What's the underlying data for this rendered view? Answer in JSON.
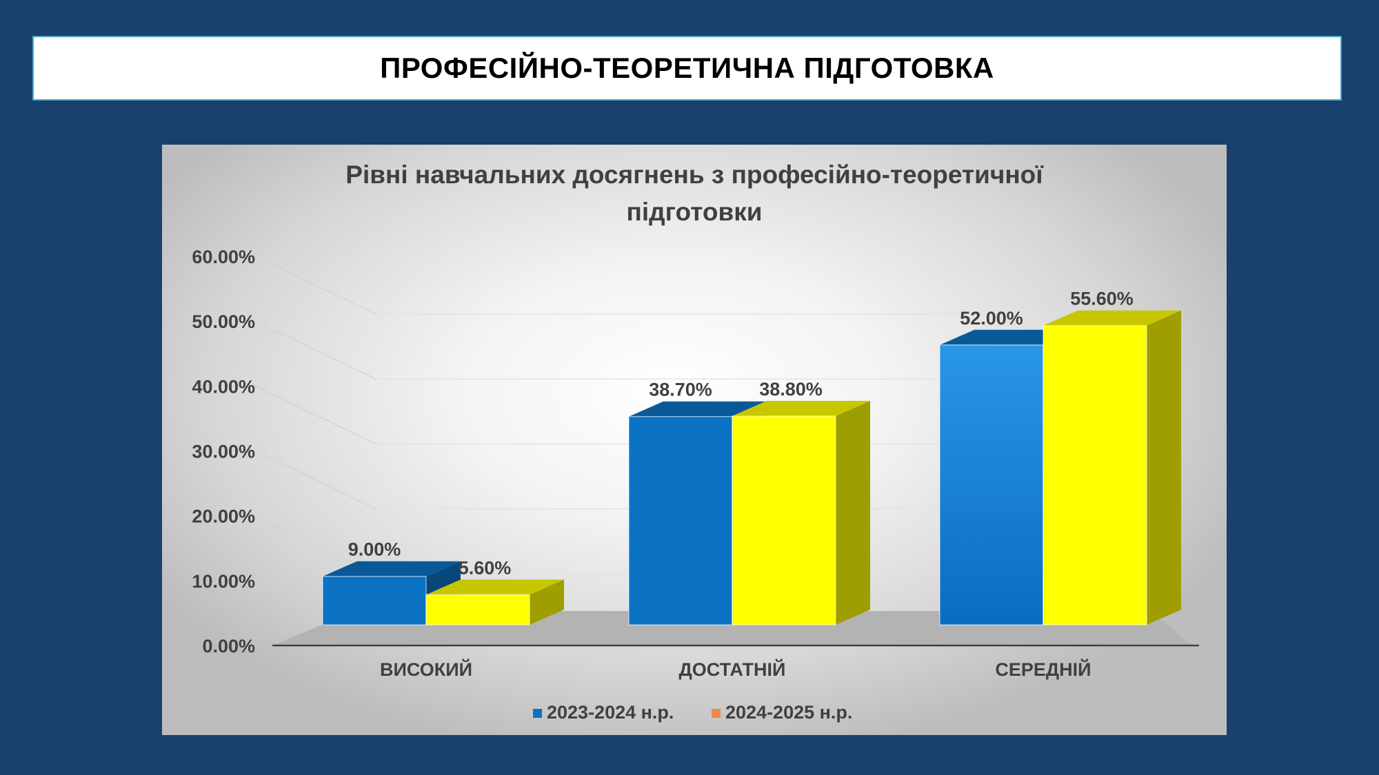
{
  "header": {
    "title": "ПРОФЕСІЙНО-ТЕОРЕТИЧНА ПІДГОТОВКА"
  },
  "chart_data": {
    "type": "bar",
    "title_lines": [
      "Рівні навчальних досягнень з професійно-теоретичної",
      "підготовки"
    ],
    "categories": [
      "ВИСОКИЙ",
      "ДОСТАТНІЙ",
      "СЕРЕДНІЙ"
    ],
    "series": [
      {
        "name": "2023-2024 н.р.",
        "values": [
          9.0,
          38.7,
          52.0
        ],
        "labels": [
          "9.00%",
          "38.70%",
          "52.00%"
        ],
        "color": "#0b72c4",
        "legend_color": "#0b72c4"
      },
      {
        "name": "2024-2025 н.р.",
        "values": [
          5.6,
          38.8,
          55.6
        ],
        "labels": [
          "5.60%",
          "38.80%",
          "55.60%"
        ],
        "color": "#ffff00",
        "legend_color": "#f0884a"
      }
    ],
    "yticks": [
      "0.00%",
      "10.00%",
      "20.00%",
      "30.00%",
      "40.00%",
      "50.00%",
      "60.00%"
    ],
    "ylim": [
      0,
      60
    ],
    "grid": true,
    "legend_position": "bottom",
    "style": "3d-clustered-column"
  }
}
